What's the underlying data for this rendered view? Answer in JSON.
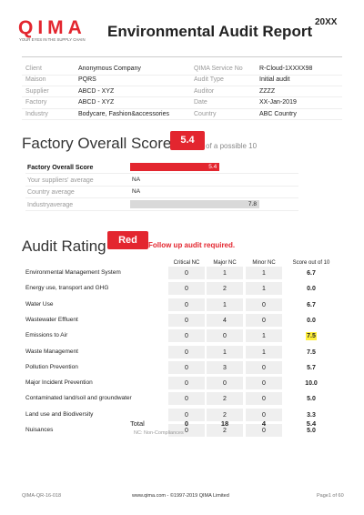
{
  "header": {
    "logo": "QIMA",
    "tagline": "YOUR EYES IN THE SUPPLY CHAIN",
    "title": "Environmental Audit Report",
    "year": "20XX"
  },
  "info": {
    "rows": [
      [
        "Client",
        "Anonymous Company",
        "QIMA Service No",
        "R-Cloud-1XXXX98"
      ],
      [
        "Maison",
        "PQRS",
        "Audit Type",
        "Initial audit"
      ],
      [
        "Supplier",
        "ABCD - XYZ",
        "Auditor",
        "ZZZZ"
      ],
      [
        "Factory",
        "ABCD - XYZ",
        "Date",
        "XX-Jan-2019"
      ],
      [
        "Industry",
        "Bodycare, Fashion&accessories",
        "Country",
        "ABC Country"
      ]
    ]
  },
  "overall": {
    "heading": "Factory Overall Score",
    "badge": "5.4",
    "possible": "of a possible 10",
    "max": 10,
    "items": [
      {
        "label": "Factory Overall Score",
        "value": 5.4
      },
      {
        "label": "Your suppliers' average",
        "value": "NA"
      },
      {
        "label": "Country average",
        "value": "NA"
      },
      {
        "label": "Industryaverage",
        "value": 7.8
      }
    ]
  },
  "rating": {
    "heading": "Audit Rating",
    "badge": "Red",
    "note": "Follow up audit required.",
    "columns": [
      "Critical NC",
      "Major NC",
      "Minor NC",
      "Score out of 10"
    ],
    "rows": [
      [
        "Environmental Management System",
        "0",
        "1",
        "1",
        "6.7"
      ],
      [
        "Energy use, transport and GHG",
        "0",
        "2",
        "1",
        "0.0"
      ],
      [
        "Water Use",
        "0",
        "1",
        "0",
        "6.7"
      ],
      [
        "Wastewater Effluent",
        "0",
        "4",
        "0",
        "0.0"
      ],
      [
        "Emissions to Air",
        "0",
        "0",
        "1",
        "7.5"
      ],
      [
        "Waste Management",
        "0",
        "1",
        "1",
        "7.5"
      ],
      [
        "Pollution Prevention",
        "0",
        "3",
        "0",
        "5.7"
      ],
      [
        "Major Incident Prevention",
        "0",
        "0",
        "0",
        "10.0"
      ],
      [
        "Contaminated land/soil and groundwater",
        "0",
        "2",
        "0",
        "5.0"
      ],
      [
        "Land use and Biodiversity",
        "0",
        "2",
        "0",
        "3.3"
      ],
      [
        "Nuisances",
        "0",
        "2",
        "0",
        "5.0"
      ]
    ],
    "total": [
      "Total",
      "0",
      "18",
      "4",
      "5.4"
    ],
    "footnote": "NC: Non-Compliances"
  },
  "footer": {
    "code": "QIMA-QR-16-018",
    "site": "www.qima.com - ©1997-2019 QIMA Limited",
    "page": "Page1  of  60"
  }
}
